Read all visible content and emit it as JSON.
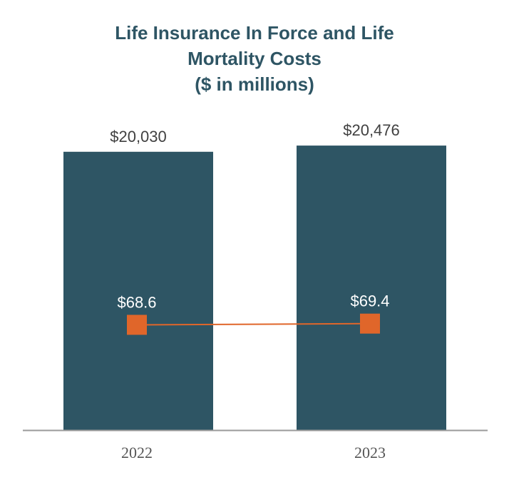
{
  "chart_data": {
    "type": "bar",
    "title_lines": [
      "Life Insurance In Force and Life",
      "Mortality Costs",
      "($ in millions)"
    ],
    "categories": [
      "2022",
      "2023"
    ],
    "series": [
      {
        "name": "Life Insurance In Force",
        "type": "bar",
        "values": [
          20030,
          20476
        ],
        "labels": [
          "$20,030",
          "$20,476"
        ],
        "ylim": [
          0,
          21200
        ]
      },
      {
        "name": "Life Mortality Costs",
        "type": "line",
        "values": [
          68.6,
          69.4
        ],
        "labels": [
          "$68.6",
          "$69.4"
        ],
        "ylim": [
          0,
          192
        ]
      }
    ],
    "legend": "none",
    "grid": false
  },
  "colors": {
    "bar": "#2e5564",
    "line": "#e0662a",
    "marker": "#e0662a",
    "axis": "#9a9a9a",
    "title": "#2e5564"
  }
}
